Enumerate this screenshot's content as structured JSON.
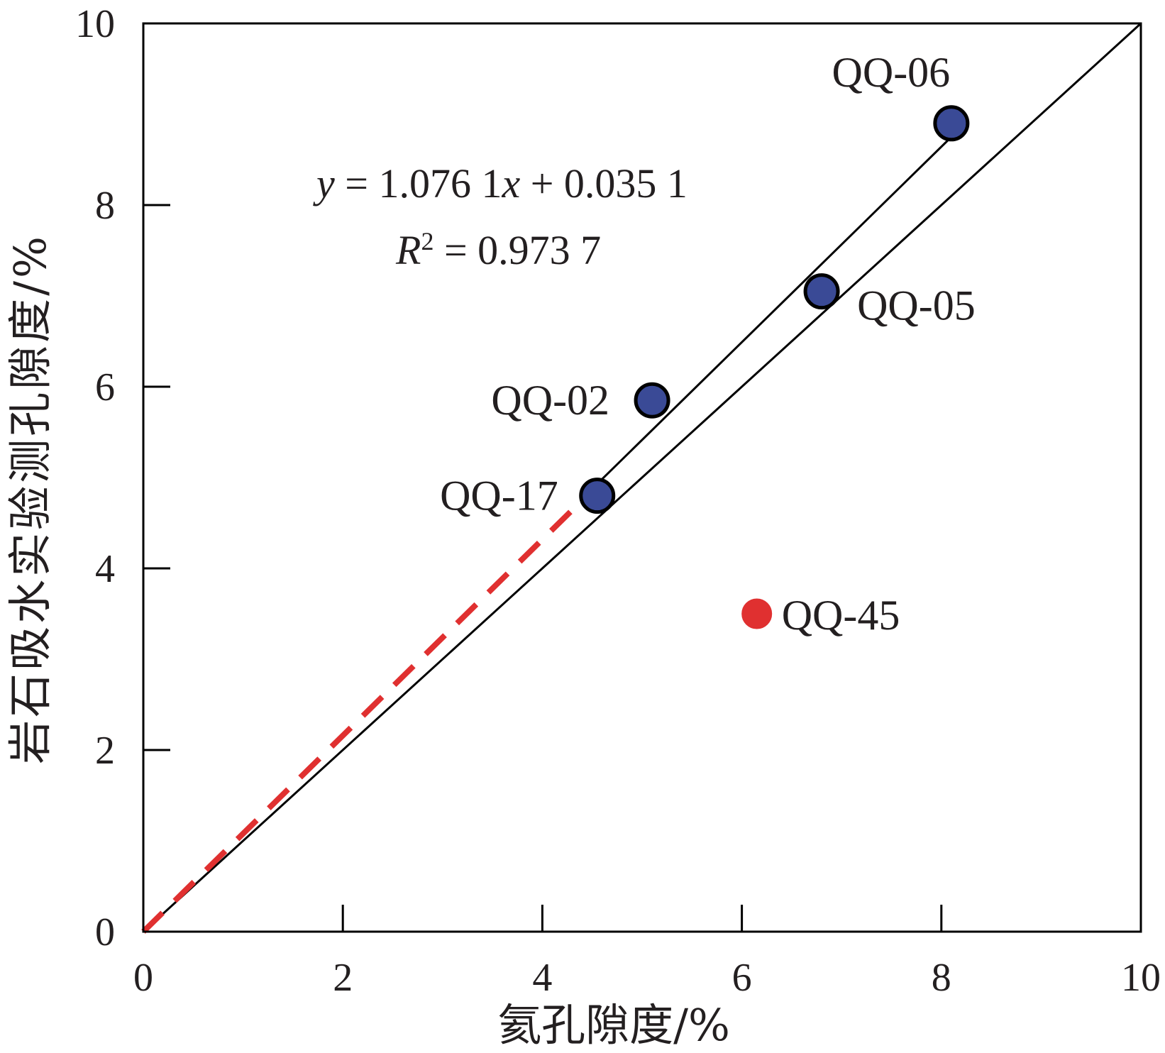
{
  "chart_data": {
    "type": "scatter",
    "xlabel": "氦孔隙度/%",
    "ylabel": "岩石吸水实验测孔隙度/%",
    "xlim": [
      0,
      10
    ],
    "ylim": [
      0,
      10
    ],
    "x_ticks": [
      "0",
      "2",
      "4",
      "6",
      "8",
      "10"
    ],
    "y_ticks": [
      "0",
      "2",
      "4",
      "6",
      "8",
      "10"
    ],
    "grid": false,
    "points": [
      {
        "label": "QQ-06",
        "x": 8.1,
        "y": 8.9,
        "color": "#3a4a96",
        "outline": "#000000"
      },
      {
        "label": "QQ-05",
        "x": 6.8,
        "y": 7.05,
        "color": "#3a4a96",
        "outline": "#000000"
      },
      {
        "label": "QQ-02",
        "x": 5.1,
        "y": 5.85,
        "color": "#3a4a96",
        "outline": "#000000"
      },
      {
        "label": "QQ-17",
        "x": 4.55,
        "y": 4.8,
        "color": "#3a4a96",
        "outline": "#000000"
      },
      {
        "label": "QQ-45",
        "x": 6.15,
        "y": 3.5,
        "color": "#e03030",
        "outline": "#e03030"
      }
    ],
    "lines": [
      {
        "kind": "identity",
        "x": [
          0,
          10
        ],
        "y": [
          0,
          10
        ],
        "color": "#000000",
        "style": "solid"
      },
      {
        "kind": "fit",
        "x": [
          4.55,
          8.1
        ],
        "y": [
          4.93,
          8.75
        ],
        "color": "#000000",
        "style": "solid"
      },
      {
        "kind": "extension",
        "x": [
          0,
          4.4
        ],
        "y": [
          0,
          4.75
        ],
        "color": "#e03030",
        "style": "dashed"
      }
    ],
    "annotation": {
      "equation_y": "y",
      "equation_rest": " = 1.076 1",
      "equation_x": "x",
      "equation_tail": " + 0.035 1",
      "r2_symbol": "R",
      "r2_exp": "2",
      "r2_rest": " = 0.973 7"
    }
  }
}
